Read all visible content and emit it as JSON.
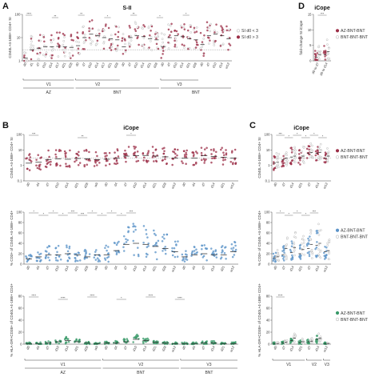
{
  "figure": {
    "panels": [
      {
        "id": "A",
        "letter": "A"
      },
      {
        "id": "B",
        "letter": "B"
      },
      {
        "id": "C",
        "letter": "C"
      },
      {
        "id": "D",
        "letter": "D"
      }
    ]
  },
  "chart_data": [
    {
      "id": "A",
      "type": "scatter",
      "title": "S-II",
      "ylabel": "CD40L+4-1BB+ CD4+ SI",
      "yscale": "log",
      "ylim": [
        1,
        100
      ],
      "yticks": [
        "1",
        "10",
        "100"
      ],
      "categories": [
        "d0",
        "d1",
        "d7",
        "d10",
        "d14",
        "d17",
        "d21",
        "d28",
        "d0",
        "d7",
        "d10",
        "d14",
        "d17",
        "d21",
        "d28",
        "d0",
        "d7",
        "d10",
        "d14",
        "d21",
        "d28",
        "d0",
        "d7",
        "d10",
        "d14",
        "d21",
        "d28",
        "d0",
        "d7",
        "d10",
        "d14",
        "w12"
      ],
      "groups": [
        {
          "label": "V1",
          "from": 0,
          "to": 7
        },
        {
          "label": "V2",
          "from": 8,
          "to": 14
        },
        {
          "label": "V3",
          "from": 21,
          "to": 26
        }
      ],
      "regimens": [
        {
          "label": "AZ",
          "from": 0,
          "to": 7
        },
        {
          "label": "BNT",
          "from": 8,
          "to": 20
        },
        {
          "label": "BNT",
          "from": 21,
          "to": 31
        }
      ],
      "threshold": 3,
      "series": [
        {
          "name": "SI d0 < 3",
          "color": "#b8b8b8",
          "hollow": true
        },
        {
          "name": "SI d0 > 3",
          "color": "#9c2f48",
          "hollow": false
        }
      ],
      "medians": [
        1.3,
        3,
        3.5,
        4,
        4,
        4.2,
        4,
        3.8,
        4.5,
        10,
        14,
        12,
        10,
        9,
        8,
        4,
        10,
        12,
        11,
        9,
        8,
        4,
        10,
        12,
        11,
        9,
        8,
        5,
        12,
        14,
        12,
        9
      ],
      "significance": [
        "****",
        "**",
        "**",
        "*",
        "**",
        "*",
        "*"
      ]
    },
    {
      "id": "B1",
      "type": "scatter",
      "title": "iCope",
      "ylabel": "CD40L+4-1BB+ CD4+ SI",
      "yscale": "log",
      "ylim": [
        0.1,
        100
      ],
      "yticks": [
        "0.1",
        "1",
        "10",
        "100"
      ],
      "categories": [
        "d0",
        "d4",
        "d7",
        "d10",
        "d14",
        "d21",
        "d28",
        "w9",
        "d0",
        "d4",
        "d7",
        "d10",
        "d14",
        "d21",
        "d28",
        "w12",
        "d0",
        "d4",
        "d7",
        "d14",
        "d21",
        "w12"
      ],
      "threshold": 3,
      "color": "#9c2f48",
      "medians": [
        1.4,
        1.6,
        2.4,
        2.6,
        2.5,
        2.8,
        2.6,
        2.4,
        2.5,
        2.9,
        4,
        4.2,
        4.4,
        4,
        3.6,
        3,
        2.9,
        3,
        4.2,
        3.8,
        3.4,
        3
      ],
      "significance": [
        "***",
        "**",
        "*"
      ]
    },
    {
      "id": "B2",
      "type": "scatter",
      "ylabel": "% CD3+ of CD40L+4-1BB+ CD4+",
      "ylim": [
        0,
        100
      ],
      "yticks": [
        "0",
        "20",
        "40",
        "60",
        "80",
        "100"
      ],
      "categories": [
        "d0",
        "d4",
        "d7",
        "d10",
        "d14",
        "d21",
        "d28",
        "w9",
        "d0",
        "d4",
        "d7",
        "d10",
        "d14",
        "d21",
        "d28",
        "w12",
        "d0",
        "d4",
        "d7",
        "d14",
        "d21",
        "w12"
      ],
      "color": "#5b93c8",
      "medians": [
        10,
        14,
        18,
        18,
        20,
        18,
        14,
        18,
        18,
        26,
        38,
        40,
        38,
        34,
        30,
        24,
        14,
        18,
        20,
        18,
        18,
        24
      ],
      "significance": [
        "*",
        "*",
        "*",
        "*",
        "***",
        "***",
        "*",
        "*",
        "*",
        "*",
        "***"
      ]
    },
    {
      "id": "B3",
      "type": "scatter",
      "ylabel": "% HLA-DR+CD38+ of CD40L+4-1BB+ CD4+",
      "ylim": [
        0,
        80
      ],
      "yticks": [
        "0",
        "20",
        "40",
        "60",
        "80"
      ],
      "categories": [
        "d0",
        "d4",
        "d7",
        "d10",
        "d14",
        "d21",
        "d28",
        "w9",
        "d0",
        "d4",
        "d7",
        "d10",
        "d14",
        "d21",
        "d28",
        "w12",
        "d0",
        "d4",
        "d7",
        "d14",
        "d21",
        "w12"
      ],
      "groups": [
        {
          "label": "V1",
          "from": 0,
          "to": 7
        },
        {
          "label": "V2",
          "from": 8,
          "to": 15
        },
        {
          "label": "V3",
          "from": 16,
          "to": 21
        }
      ],
      "regimens": [
        {
          "label": "AZ",
          "from": 0,
          "to": 7
        },
        {
          "label": "BNT",
          "from": 8,
          "to": 15
        },
        {
          "label": "BNT",
          "from": 16,
          "to": 21
        }
      ],
      "color": "#3a9a6a",
      "medians": [
        1,
        1,
        2,
        4,
        6,
        4,
        2,
        1,
        2,
        2,
        4,
        8,
        6,
        3,
        2,
        1,
        1,
        1,
        2,
        2,
        1,
        1
      ],
      "significance": [
        "****",
        "****",
        "****",
        "*",
        "****",
        "****"
      ]
    },
    {
      "id": "C1",
      "type": "scatter",
      "title": "iCope",
      "ylabel": "CD40L+4-1BB+ CD4+ SI",
      "yscale": "log",
      "ylim": [
        0.1,
        100
      ],
      "yticks": [
        "0.1",
        "1",
        "10",
        "100"
      ],
      "categories": [
        "d0",
        "d7",
        "d14",
        "d21",
        "d7",
        "d14",
        "w12"
      ],
      "threshold": 3,
      "series": [
        {
          "name": "AZ-BNT-BNT",
          "color": "#9c2f48",
          "hollow": false
        },
        {
          "name": "BNT-BNT-BNT",
          "color": "#b8b8b8",
          "hollow": true
        }
      ],
      "medians_a": [
        1.4,
        2.4,
        3.5,
        3,
        6,
        6,
        3
      ],
      "medians_b": [
        1.6,
        3,
        4,
        4,
        7,
        7,
        4
      ],
      "significance": [
        "***",
        "*",
        "*",
        "*",
        "*",
        "*"
      ]
    },
    {
      "id": "C2",
      "type": "scatter",
      "ylabel": "% CD3+ of CD40L+4-1BB+ CD4+",
      "ylim": [
        0,
        100
      ],
      "yticks": [
        "0",
        "20",
        "40",
        "60",
        "80",
        "100"
      ],
      "categories": [
        "d0",
        "d7",
        "d14",
        "d21",
        "d7",
        "d14",
        "w12"
      ],
      "series": [
        {
          "name": "AZ-BNT-BNT",
          "color": "#5b93c8",
          "hollow": false
        },
        {
          "name": "BNT-BNT-BNT",
          "color": "#b8b8b8",
          "hollow": true
        }
      ],
      "medians_a": [
        12,
        18,
        22,
        20,
        30,
        36,
        24
      ],
      "medians_b": [
        14,
        30,
        32,
        28,
        38,
        40,
        26
      ],
      "significance": [
        "*",
        "*",
        "*",
        "*",
        "***"
      ]
    },
    {
      "id": "C3",
      "type": "scatter",
      "ylabel": "% HLA-DR+CD38+ of CD40L+4-1BB+ CD4+",
      "ylim": [
        0,
        80
      ],
      "yticks": [
        "0",
        "20",
        "40",
        "60",
        "80"
      ],
      "categories": [
        "d0",
        "d7",
        "d14",
        "d21",
        "d7",
        "d14",
        "w12"
      ],
      "groups": [
        {
          "label": "V1",
          "from": 0,
          "to": 3
        },
        {
          "label": "V2",
          "from": 4,
          "to": 5
        },
        {
          "label": "V3",
          "from": 6,
          "to": 6
        }
      ],
      "series": [
        {
          "name": "AZ-BNT-BNT",
          "color": "#3a9a6a",
          "hollow": false
        },
        {
          "name": "BNT-BNT-BNT",
          "color": "#b8b8b8",
          "hollow": true
        }
      ],
      "medians_a": [
        1,
        2,
        6,
        3,
        4,
        8,
        1
      ],
      "medians_b": [
        1,
        3,
        10,
        4,
        5,
        10,
        1
      ],
      "significance": [
        "****"
      ]
    },
    {
      "id": "D",
      "type": "scatter",
      "title": "iCope",
      "ylabel": "fold-change SI iCope",
      "ylim": [
        0,
        15
      ],
      "yticks": [
        "0",
        "5",
        "10",
        "15"
      ],
      "categories": [
        "d0 to d7",
        "d0 to d14"
      ],
      "series": [
        {
          "name": "AZ-BNT-BNT",
          "color": "#9c2f48",
          "hollow": false
        },
        {
          "name": "BNT-BNT-BNT",
          "color": "#b8b8b8",
          "hollow": true
        }
      ],
      "medians_a": [
        1.2,
        2
      ],
      "medians_b": [
        2,
        3
      ],
      "significance": [
        "***"
      ]
    }
  ]
}
